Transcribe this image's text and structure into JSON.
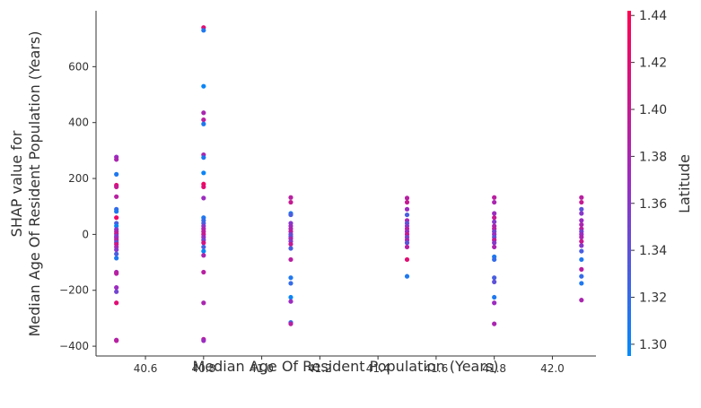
{
  "chart_data": {
    "type": "scatter",
    "title": "",
    "xlabel": "Median Age Of Resident Population (Years)",
    "ylabel_line1": "SHAP value for",
    "ylabel_line2": "Median Age Of Resident Population (Years)",
    "xlim": [
      40.43,
      42.15
    ],
    "ylim": [
      -435,
      800
    ],
    "xticks": [
      40.6,
      40.8,
      41.0,
      41.2,
      41.4,
      41.6,
      41.8,
      42.0
    ],
    "xtick_labels": [
      "40.6",
      "40.8",
      "41.0",
      "41.2",
      "41.4",
      "41.6",
      "41.8",
      "42.0"
    ],
    "yticks": [
      -400,
      -200,
      0,
      200,
      400,
      600
    ],
    "ytick_labels": [
      "−400",
      "−200",
      "0",
      "200",
      "400",
      "600"
    ],
    "grid": false,
    "colorbar": {
      "label": "Latitude",
      "min": 1.295,
      "max": 1.442,
      "ticks": [
        1.3,
        1.32,
        1.34,
        1.36,
        1.38,
        1.4,
        1.42,
        1.44
      ],
      "tick_labels": [
        "1.30",
        "1.32",
        "1.34",
        "1.36",
        "1.38",
        "1.40",
        "1.42",
        "1.44"
      ],
      "color_low": "#008bfb",
      "color_mid": "#9a2dc2",
      "color_high": "#ff0052"
    },
    "points": [
      {
        "x": 40.5,
        "y": 277,
        "c": 1.37
      },
      {
        "x": 40.5,
        "y": 268,
        "c": 1.38
      },
      {
        "x": 40.5,
        "y": 215,
        "c": 1.31
      },
      {
        "x": 40.5,
        "y": 176,
        "c": 1.42
      },
      {
        "x": 40.5,
        "y": 170,
        "c": 1.4
      },
      {
        "x": 40.5,
        "y": 135,
        "c": 1.39
      },
      {
        "x": 40.5,
        "y": 90,
        "c": 1.32
      },
      {
        "x": 40.5,
        "y": 82,
        "c": 1.31
      },
      {
        "x": 40.5,
        "y": 60,
        "c": 1.43
      },
      {
        "x": 40.5,
        "y": 40,
        "c": 1.33
      },
      {
        "x": 40.5,
        "y": 30,
        "c": 1.3
      },
      {
        "x": 40.5,
        "y": 18,
        "c": 1.36
      },
      {
        "x": 40.5,
        "y": 10,
        "c": 1.38
      },
      {
        "x": 40.5,
        "y": 2,
        "c": 1.4
      },
      {
        "x": 40.5,
        "y": -6,
        "c": 1.35
      },
      {
        "x": 40.5,
        "y": -12,
        "c": 1.37
      },
      {
        "x": 40.5,
        "y": -20,
        "c": 1.39
      },
      {
        "x": 40.5,
        "y": -28,
        "c": 1.34
      },
      {
        "x": 40.5,
        "y": -35,
        "c": 1.41
      },
      {
        "x": 40.5,
        "y": -45,
        "c": 1.38
      },
      {
        "x": 40.5,
        "y": -55,
        "c": 1.36
      },
      {
        "x": 40.5,
        "y": -70,
        "c": 1.33
      },
      {
        "x": 40.5,
        "y": -85,
        "c": 1.31
      },
      {
        "x": 40.5,
        "y": -135,
        "c": 1.38
      },
      {
        "x": 40.5,
        "y": -140,
        "c": 1.39
      },
      {
        "x": 40.5,
        "y": -190,
        "c": 1.37
      },
      {
        "x": 40.5,
        "y": -205,
        "c": 1.35
      },
      {
        "x": 40.5,
        "y": -245,
        "c": 1.42
      },
      {
        "x": 40.5,
        "y": -378,
        "c": 1.38
      },
      {
        "x": 40.5,
        "y": -380,
        "c": 1.39
      },
      {
        "x": 40.8,
        "y": 740,
        "c": 1.42
      },
      {
        "x": 40.8,
        "y": 730,
        "c": 1.31
      },
      {
        "x": 40.8,
        "y": 530,
        "c": 1.3
      },
      {
        "x": 40.8,
        "y": 435,
        "c": 1.38
      },
      {
        "x": 40.8,
        "y": 410,
        "c": 1.39
      },
      {
        "x": 40.8,
        "y": 395,
        "c": 1.31
      },
      {
        "x": 40.8,
        "y": 285,
        "c": 1.38
      },
      {
        "x": 40.8,
        "y": 275,
        "c": 1.31
      },
      {
        "x": 40.8,
        "y": 220,
        "c": 1.3
      },
      {
        "x": 40.8,
        "y": 180,
        "c": 1.43
      },
      {
        "x": 40.8,
        "y": 170,
        "c": 1.42
      },
      {
        "x": 40.8,
        "y": 130,
        "c": 1.37
      },
      {
        "x": 40.8,
        "y": 60,
        "c": 1.31
      },
      {
        "x": 40.8,
        "y": 50,
        "c": 1.32
      },
      {
        "x": 40.8,
        "y": 40,
        "c": 1.33
      },
      {
        "x": 40.8,
        "y": 30,
        "c": 1.36
      },
      {
        "x": 40.8,
        "y": 20,
        "c": 1.38
      },
      {
        "x": 40.8,
        "y": 10,
        "c": 1.39
      },
      {
        "x": 40.8,
        "y": 0,
        "c": 1.4
      },
      {
        "x": 40.8,
        "y": -10,
        "c": 1.37
      },
      {
        "x": 40.8,
        "y": -20,
        "c": 1.35
      },
      {
        "x": 40.8,
        "y": -30,
        "c": 1.41
      },
      {
        "x": 40.8,
        "y": -45,
        "c": 1.33
      },
      {
        "x": 40.8,
        "y": -60,
        "c": 1.3
      },
      {
        "x": 40.8,
        "y": -75,
        "c": 1.38
      },
      {
        "x": 40.8,
        "y": -135,
        "c": 1.39
      },
      {
        "x": 40.8,
        "y": -245,
        "c": 1.38
      },
      {
        "x": 40.8,
        "y": -375,
        "c": 1.39
      },
      {
        "x": 40.8,
        "y": -380,
        "c": 1.37
      },
      {
        "x": 41.1,
        "y": 132,
        "c": 1.39
      },
      {
        "x": 41.1,
        "y": 115,
        "c": 1.4
      },
      {
        "x": 41.1,
        "y": 75,
        "c": 1.31
      },
      {
        "x": 41.1,
        "y": 70,
        "c": 1.33
      },
      {
        "x": 41.1,
        "y": 40,
        "c": 1.36
      },
      {
        "x": 41.1,
        "y": 30,
        "c": 1.37
      },
      {
        "x": 41.1,
        "y": 20,
        "c": 1.38
      },
      {
        "x": 41.1,
        "y": 10,
        "c": 1.39
      },
      {
        "x": 41.1,
        "y": 0,
        "c": 1.35
      },
      {
        "x": 41.1,
        "y": -8,
        "c": 1.34
      },
      {
        "x": 41.1,
        "y": -15,
        "c": 1.38
      },
      {
        "x": 41.1,
        "y": -25,
        "c": 1.36
      },
      {
        "x": 41.1,
        "y": -35,
        "c": 1.4
      },
      {
        "x": 41.1,
        "y": -50,
        "c": 1.33
      },
      {
        "x": 41.1,
        "y": -90,
        "c": 1.39
      },
      {
        "x": 41.1,
        "y": -155,
        "c": 1.31
      },
      {
        "x": 41.1,
        "y": -175,
        "c": 1.32
      },
      {
        "x": 41.1,
        "y": -225,
        "c": 1.3
      },
      {
        "x": 41.1,
        "y": -240,
        "c": 1.37
      },
      {
        "x": 41.1,
        "y": -315,
        "c": 1.32
      },
      {
        "x": 41.1,
        "y": -320,
        "c": 1.39
      },
      {
        "x": 41.5,
        "y": 130,
        "c": 1.39
      },
      {
        "x": 41.5,
        "y": 115,
        "c": 1.4
      },
      {
        "x": 41.5,
        "y": 90,
        "c": 1.37
      },
      {
        "x": 41.5,
        "y": 70,
        "c": 1.33
      },
      {
        "x": 41.5,
        "y": 50,
        "c": 1.38
      },
      {
        "x": 41.5,
        "y": 40,
        "c": 1.34
      },
      {
        "x": 41.5,
        "y": 30,
        "c": 1.36
      },
      {
        "x": 41.5,
        "y": 20,
        "c": 1.39
      },
      {
        "x": 41.5,
        "y": 10,
        "c": 1.37
      },
      {
        "x": 41.5,
        "y": 0,
        "c": 1.4
      },
      {
        "x": 41.5,
        "y": -10,
        "c": 1.35
      },
      {
        "x": 41.5,
        "y": -20,
        "c": 1.38
      },
      {
        "x": 41.5,
        "y": -30,
        "c": 1.34
      },
      {
        "x": 41.5,
        "y": -45,
        "c": 1.39
      },
      {
        "x": 41.5,
        "y": -90,
        "c": 1.42
      },
      {
        "x": 41.5,
        "y": -150,
        "c": 1.31
      },
      {
        "x": 41.8,
        "y": 132,
        "c": 1.39
      },
      {
        "x": 41.8,
        "y": 115,
        "c": 1.38
      },
      {
        "x": 41.8,
        "y": 75,
        "c": 1.37
      },
      {
        "x": 41.8,
        "y": 60,
        "c": 1.4
      },
      {
        "x": 41.8,
        "y": 45,
        "c": 1.36
      },
      {
        "x": 41.8,
        "y": 30,
        "c": 1.38
      },
      {
        "x": 41.8,
        "y": 20,
        "c": 1.39
      },
      {
        "x": 41.8,
        "y": 10,
        "c": 1.35
      },
      {
        "x": 41.8,
        "y": 0,
        "c": 1.37
      },
      {
        "x": 41.8,
        "y": -10,
        "c": 1.34
      },
      {
        "x": 41.8,
        "y": -20,
        "c": 1.4
      },
      {
        "x": 41.8,
        "y": -30,
        "c": 1.36
      },
      {
        "x": 41.8,
        "y": -45,
        "c": 1.38
      },
      {
        "x": 41.8,
        "y": -80,
        "c": 1.31
      },
      {
        "x": 41.8,
        "y": -90,
        "c": 1.32
      },
      {
        "x": 41.8,
        "y": -155,
        "c": 1.33
      },
      {
        "x": 41.8,
        "y": -170,
        "c": 1.34
      },
      {
        "x": 41.8,
        "y": -225,
        "c": 1.31
      },
      {
        "x": 41.8,
        "y": -245,
        "c": 1.37
      },
      {
        "x": 41.8,
        "y": -320,
        "c": 1.38
      },
      {
        "x": 42.1,
        "y": 132,
        "c": 1.39
      },
      {
        "x": 42.1,
        "y": 115,
        "c": 1.4
      },
      {
        "x": 42.1,
        "y": 90,
        "c": 1.34
      },
      {
        "x": 42.1,
        "y": 75,
        "c": 1.36
      },
      {
        "x": 42.1,
        "y": 50,
        "c": 1.37
      },
      {
        "x": 42.1,
        "y": 35,
        "c": 1.38
      },
      {
        "x": 42.1,
        "y": 20,
        "c": 1.39
      },
      {
        "x": 42.1,
        "y": 10,
        "c": 1.35
      },
      {
        "x": 42.1,
        "y": 0,
        "c": 1.37
      },
      {
        "x": 42.1,
        "y": -10,
        "c": 1.38
      },
      {
        "x": 42.1,
        "y": -25,
        "c": 1.4
      },
      {
        "x": 42.1,
        "y": -40,
        "c": 1.36
      },
      {
        "x": 42.1,
        "y": -60,
        "c": 1.33
      },
      {
        "x": 42.1,
        "y": -90,
        "c": 1.31
      },
      {
        "x": 42.1,
        "y": -125,
        "c": 1.39
      },
      {
        "x": 42.1,
        "y": -150,
        "c": 1.32
      },
      {
        "x": 42.1,
        "y": -175,
        "c": 1.31
      },
      {
        "x": 42.1,
        "y": -235,
        "c": 1.38
      }
    ]
  }
}
